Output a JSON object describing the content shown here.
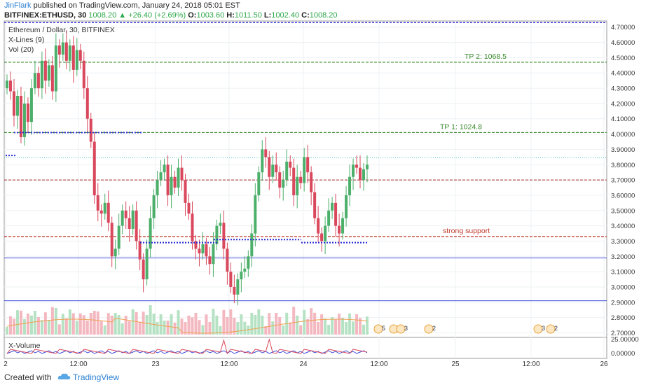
{
  "header": {
    "author": "JinFlark",
    "published": "published on TradingView.com, January 24, 2018 05:01 EST",
    "symbol": "BITFINEX:ETHUSD, 30",
    "last": "1008.20",
    "change": "+26.40 (+2.69%)",
    "open_label": "O:",
    "open": "1003.60",
    "high_label": "H:",
    "high": "1011.50",
    "low_label": "L:",
    "low": "1002.40",
    "close_label": "C:",
    "close": "1008.20"
  },
  "legend": {
    "title": "Ethereum / Dollar, 30, BITFINEX",
    "indicator1": "X-Lines (9)",
    "indicator2": "Vol (20)",
    "subpane": "X-Volume"
  },
  "footer": {
    "created": "Created with",
    "brand": "TradingView"
  },
  "chart_data": {
    "type": "candlestick",
    "y_axis_ticks": [
      "4.70000",
      "4.60000",
      "4.50000",
      "4.40000",
      "4.30000",
      "4.20000",
      "4.10000",
      "4.00000",
      "3.90000",
      "3.80000",
      "3.70000",
      "3.60000",
      "3.50000",
      "3.40000",
      "3.30000",
      "3.20000",
      "3.10000",
      "3.00000",
      "2.90000",
      "2.80000",
      "2.70000"
    ],
    "ylim": [
      2.67,
      4.74
    ],
    "sub_axis_ticks": [
      "25.00000",
      "0.00000"
    ],
    "x_axis_ticks": [
      "2",
      "12:00",
      "23",
      "12:00",
      "24",
      "12:00",
      "25",
      "12:00",
      "26"
    ],
    "annotations": [
      {
        "label": "TP 2:  1068.5",
        "y": 4.47,
        "color": "#3b8a2e"
      },
      {
        "label": "TP 1:  1024.8",
        "y": 4.01,
        "color": "#3b8a2e"
      },
      {
        "label": "strong support",
        "y": 3.33,
        "color": "#c0392b"
      }
    ],
    "event_badges": [
      "5",
      "3",
      "3",
      "2",
      "3",
      "2"
    ],
    "closes": [
      4.35,
      4.28,
      4.12,
      4.25,
      3.98,
      4.2,
      4.08,
      4.3,
      4.4,
      4.3,
      4.48,
      4.35,
      4.45,
      4.28,
      4.58,
      4.52,
      4.6,
      4.48,
      4.58,
      4.42,
      4.55,
      4.48,
      4.3,
      4.1,
      3.95,
      3.6,
      3.5,
      3.48,
      3.55,
      3.42,
      3.2,
      3.25,
      3.4,
      3.5,
      3.45,
      3.38,
      3.5,
      3.3,
      3.18,
      3.05,
      3.25,
      3.45,
      3.6,
      3.7,
      3.75,
      3.8,
      3.6,
      3.72,
      3.65,
      3.78,
      3.7,
      3.55,
      3.48,
      3.3,
      3.25,
      3.22,
      3.28,
      3.2,
      3.15,
      3.28,
      3.4,
      3.42,
      3.25,
      3.1,
      3.0,
      2.95,
      3.05,
      3.1,
      3.12,
      3.2,
      3.35,
      3.6,
      3.75,
      3.9,
      3.85,
      3.72,
      3.8,
      3.75,
      3.65,
      3.7,
      3.82,
      3.78,
      3.6,
      3.72,
      3.68,
      3.85,
      3.75,
      3.62,
      3.45,
      3.35,
      3.3,
      3.4,
      3.5,
      3.55,
      3.4,
      3.35,
      3.45,
      3.6,
      3.72,
      3.8,
      3.78,
      3.7,
      3.77,
      3.8
    ]
  }
}
